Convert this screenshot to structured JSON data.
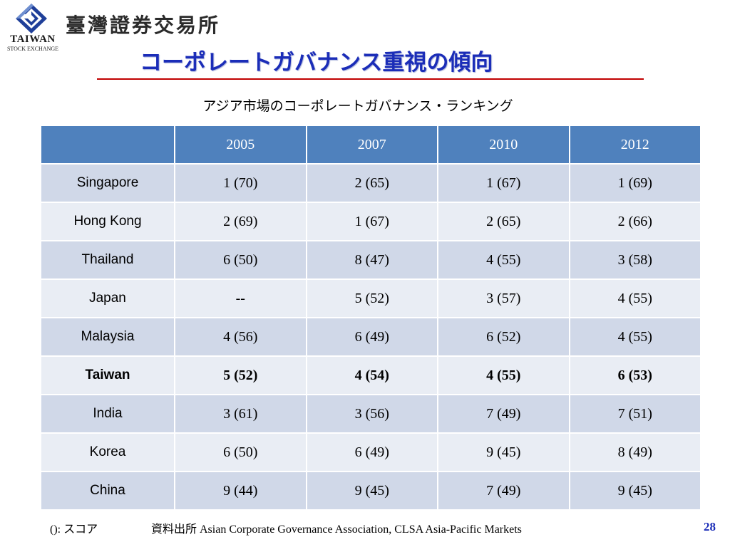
{
  "header": {
    "logo_text": "TAIWAN",
    "logo_subtext": "STOCK EXCHANGE",
    "org_name": "臺灣證券交易所",
    "title": "コーポレートガバナンス重視の傾向",
    "colors": {
      "title": "#1b2db8",
      "rule": "#c00000",
      "header_fill": "#4f81bd"
    }
  },
  "subtitle": "アジア市場のコーポレートガバナンス・ランキング",
  "table": {
    "columns": [
      "",
      "2005",
      "2007",
      "2010",
      "2012"
    ],
    "rows": [
      {
        "country": "Singapore",
        "values": [
          "1 (70)",
          "2 (65)",
          "1 (67)",
          "1 (69)"
        ]
      },
      {
        "country": "Hong Kong",
        "values": [
          "2 (69)",
          "1 (67)",
          "2 (65)",
          "2 (66)"
        ]
      },
      {
        "country": "Thailand",
        "values": [
          "6 (50)",
          "8 (47)",
          "4 (55)",
          "3 (58)"
        ]
      },
      {
        "country": "Japan",
        "values": [
          "--",
          "5 (52)",
          "3 (57)",
          "4 (55)"
        ]
      },
      {
        "country": "Malaysia",
        "values": [
          "4 (56)",
          "6 (49)",
          "6 (52)",
          "4 (55)"
        ]
      },
      {
        "country": "Taiwan",
        "values": [
          "5 (52)",
          "4 (54)",
          "4 (55)",
          "6 (53)"
        ],
        "bold": true
      },
      {
        "country": "India",
        "values": [
          "3 (61)",
          "3 (56)",
          "7 (49)",
          "7 (51)"
        ]
      },
      {
        "country": "Korea",
        "values": [
          "6 (50)",
          "6 (49)",
          "9 (45)",
          "8 (49)"
        ]
      },
      {
        "country": "China",
        "values": [
          "9 (44)",
          "9 (45)",
          "7 (49)",
          "9 (45)"
        ]
      }
    ]
  },
  "footer": {
    "note": "(): スコア",
    "source": "資料出所 Asian Corporate Governance Association, CLSA Asia-Pacific Markets",
    "page_number": "28"
  }
}
